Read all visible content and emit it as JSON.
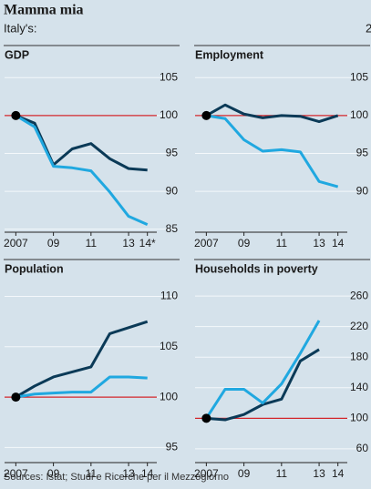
{
  "title": "Mamma mia",
  "subtitle": "Italy's:",
  "corner_note": "2",
  "source": "Sources: Istat; Studi e Ricerche per il Mezzogiorno",
  "chart_data": [
    {
      "type": "line",
      "title": "GDP",
      "reference_line": 100,
      "x": [
        2007,
        2008,
        2009,
        2010,
        2011,
        2012,
        2013,
        2014
      ],
      "xlim": [
        2006.4,
        2014.5
      ],
      "xticks": [
        2007,
        {
          "value": 2009,
          "label": "09"
        },
        {
          "value": 2011,
          "label": "11"
        },
        {
          "value": 2013,
          "label": "13"
        },
        {
          "value": 2014,
          "label": "14*"
        }
      ],
      "ylim": [
        84.6,
        106.6
      ],
      "yticks": [
        85,
        90,
        95,
        100,
        105
      ],
      "series": [
        {
          "color": "#0b3a57",
          "values": [
            100,
            99,
            93.5,
            95.6,
            96.3,
            94.3,
            93,
            92.8
          ]
        },
        {
          "color": "#20a8e0",
          "values": [
            100,
            98.5,
            93.3,
            93.1,
            92.7,
            89.9,
            86.7,
            85.6
          ]
        }
      ]
    },
    {
      "type": "line",
      "title": "Employment",
      "reference_line": 100,
      "x": [
        2007,
        2008,
        2009,
        2010,
        2011,
        2012,
        2013,
        2014
      ],
      "xlim": [
        2006.4,
        2014.5
      ],
      "xticks": [
        2007,
        {
          "value": 2009,
          "label": "09"
        },
        {
          "value": 2011,
          "label": "11"
        },
        {
          "value": 2013,
          "label": "13"
        },
        {
          "value": 2014,
          "label": "14"
        }
      ],
      "ylim": [
        84.6,
        106.6
      ],
      "yticks": [
        90,
        95,
        100,
        105
      ],
      "series": [
        {
          "color": "#0b3a57",
          "values": [
            100,
            101.4,
            100.2,
            99.7,
            100,
            99.9,
            99.2,
            100
          ]
        },
        {
          "color": "#20a8e0",
          "values": [
            100,
            99.6,
            96.8,
            95.3,
            95.5,
            95.2,
            91.3,
            90.6
          ]
        }
      ]
    },
    {
      "type": "line",
      "title": "Population",
      "reference_line": 100,
      "x": [
        2007,
        2008,
        2009,
        2010,
        2011,
        2012,
        2013,
        2014
      ],
      "xlim": [
        2006.4,
        2014.5
      ],
      "xticks": [
        2007,
        {
          "value": 2009,
          "label": "09"
        },
        {
          "value": 2011,
          "label": "11"
        },
        {
          "value": 2013,
          "label": "13"
        },
        {
          "value": 2014,
          "label": "14"
        }
      ],
      "ylim": [
        93.5,
        111.4
      ],
      "yticks": [
        95,
        100,
        105,
        110
      ],
      "series": [
        {
          "color": "#0b3a57",
          "values": [
            100,
            101.1,
            102,
            102.5,
            103,
            106.3,
            106.9,
            107.5
          ]
        },
        {
          "color": "#20a8e0",
          "values": [
            100,
            100.3,
            100.4,
            100.5,
            100.5,
            102,
            102,
            101.9
          ]
        }
      ]
    },
    {
      "type": "line",
      "title": "Households in poverty",
      "reference_line": 100,
      "x": [
        2007,
        2008,
        2009,
        2010,
        2011,
        2012,
        2013
      ],
      "xlim": [
        2006.4,
        2014.5
      ],
      "xticks": [
        2007,
        {
          "value": 2009,
          "label": "09"
        },
        {
          "value": 2011,
          "label": "11"
        },
        {
          "value": 2013,
          "label": "13"
        },
        {
          "value": 2014,
          "label": "14"
        }
      ],
      "ylim": [
        42,
        278
      ],
      "yticks": [
        60,
        100,
        140,
        180,
        220,
        260
      ],
      "series": [
        {
          "color": "#0b3a57",
          "values": [
            100,
            98,
            105,
            118,
            125,
            175,
            190
          ]
        },
        {
          "color": "#20a8e0",
          "values": [
            100,
            138,
            138,
            120,
            145,
            185,
            228
          ]
        }
      ]
    }
  ]
}
